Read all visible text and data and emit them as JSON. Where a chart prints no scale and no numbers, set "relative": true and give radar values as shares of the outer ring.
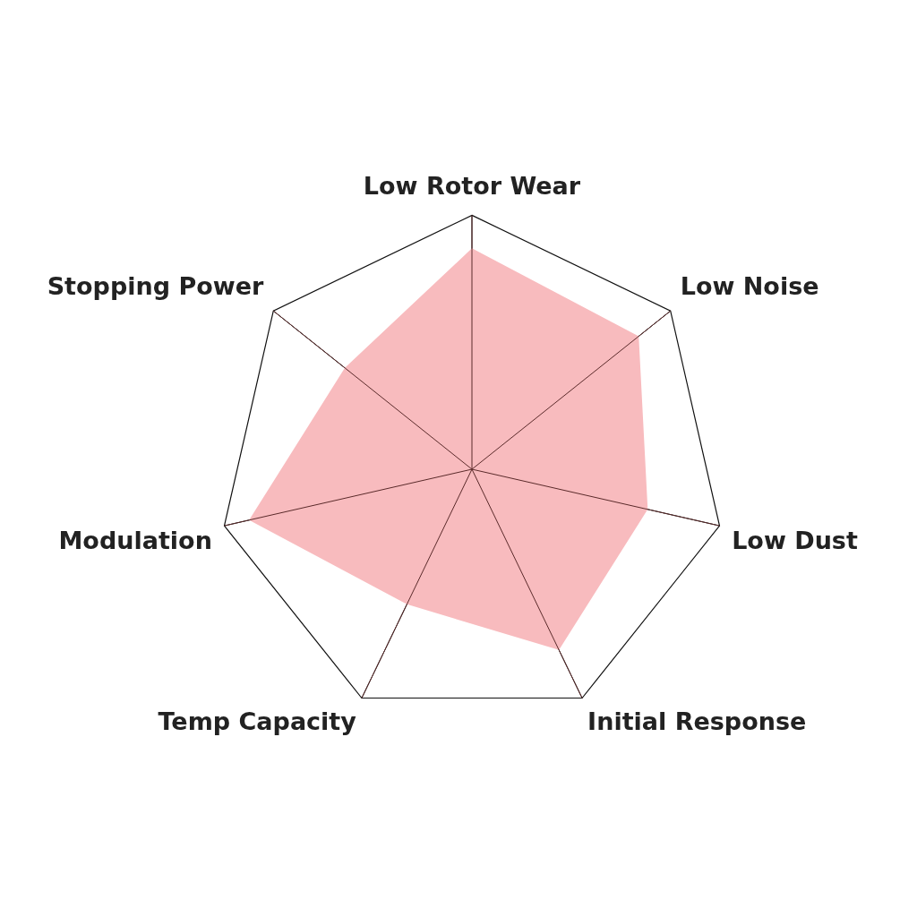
{
  "chart_data": {
    "type": "radar",
    "relative": true,
    "categories": [
      "Low Rotor Wear",
      "Low Noise",
      "Low Dust",
      "Initial Response",
      "Temp Capacity",
      "Modulation",
      "Stopping Power"
    ],
    "series": [
      {
        "color": "#f8bbbe",
        "values": [
          0.87,
          0.84,
          0.71,
          0.79,
          0.59,
          0.9,
          0.64
        ]
      }
    ]
  }
}
